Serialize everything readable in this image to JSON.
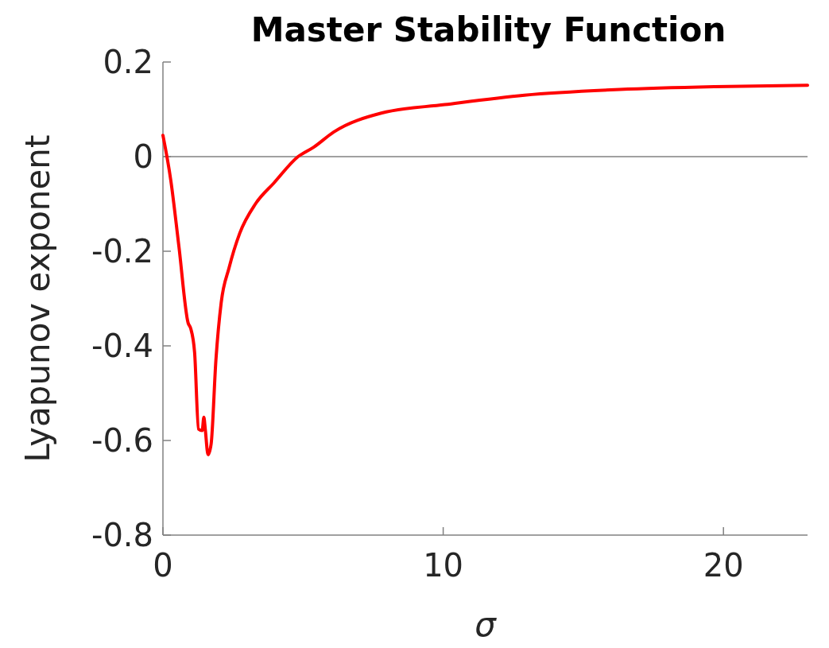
{
  "chart_data": {
    "type": "line",
    "title": "Master Stability Function",
    "xlabel": "σ",
    "ylabel": "Lyapunov exponent",
    "xlim": [
      0,
      23
    ],
    "ylim": [
      -0.8,
      0.2
    ],
    "xticks": [
      0,
      10,
      20
    ],
    "yticks": [
      -0.8,
      -0.6,
      -0.4,
      -0.2,
      0,
      0.2
    ],
    "grid": false,
    "ref_lines": [
      {
        "axis": "y",
        "value": 0,
        "color": "#808080"
      }
    ],
    "series": [
      {
        "color": "#ff0000",
        "x": [
          0,
          0.28,
          0.57,
          0.9,
          0.99,
          1.13,
          1.27,
          1.4,
          1.46,
          1.51,
          1.61,
          1.72,
          1.89,
          2.08,
          2.36,
          2.74,
          3.3,
          3.97,
          4.82,
          5.38,
          6.09,
          7.79,
          10.06,
          12.9,
          16.3,
          19.7,
          23
        ],
        "values": [
          0.045,
          -0.05,
          -0.19,
          -0.352,
          -0.363,
          -0.414,
          -0.576,
          -0.579,
          -0.551,
          -0.576,
          -0.63,
          -0.607,
          -0.43,
          -0.308,
          -0.235,
          -0.162,
          -0.1,
          -0.055,
          0,
          0.02,
          0.052,
          0.092,
          0.11,
          0.13,
          0.142,
          0.148,
          0.151
        ]
      }
    ]
  }
}
